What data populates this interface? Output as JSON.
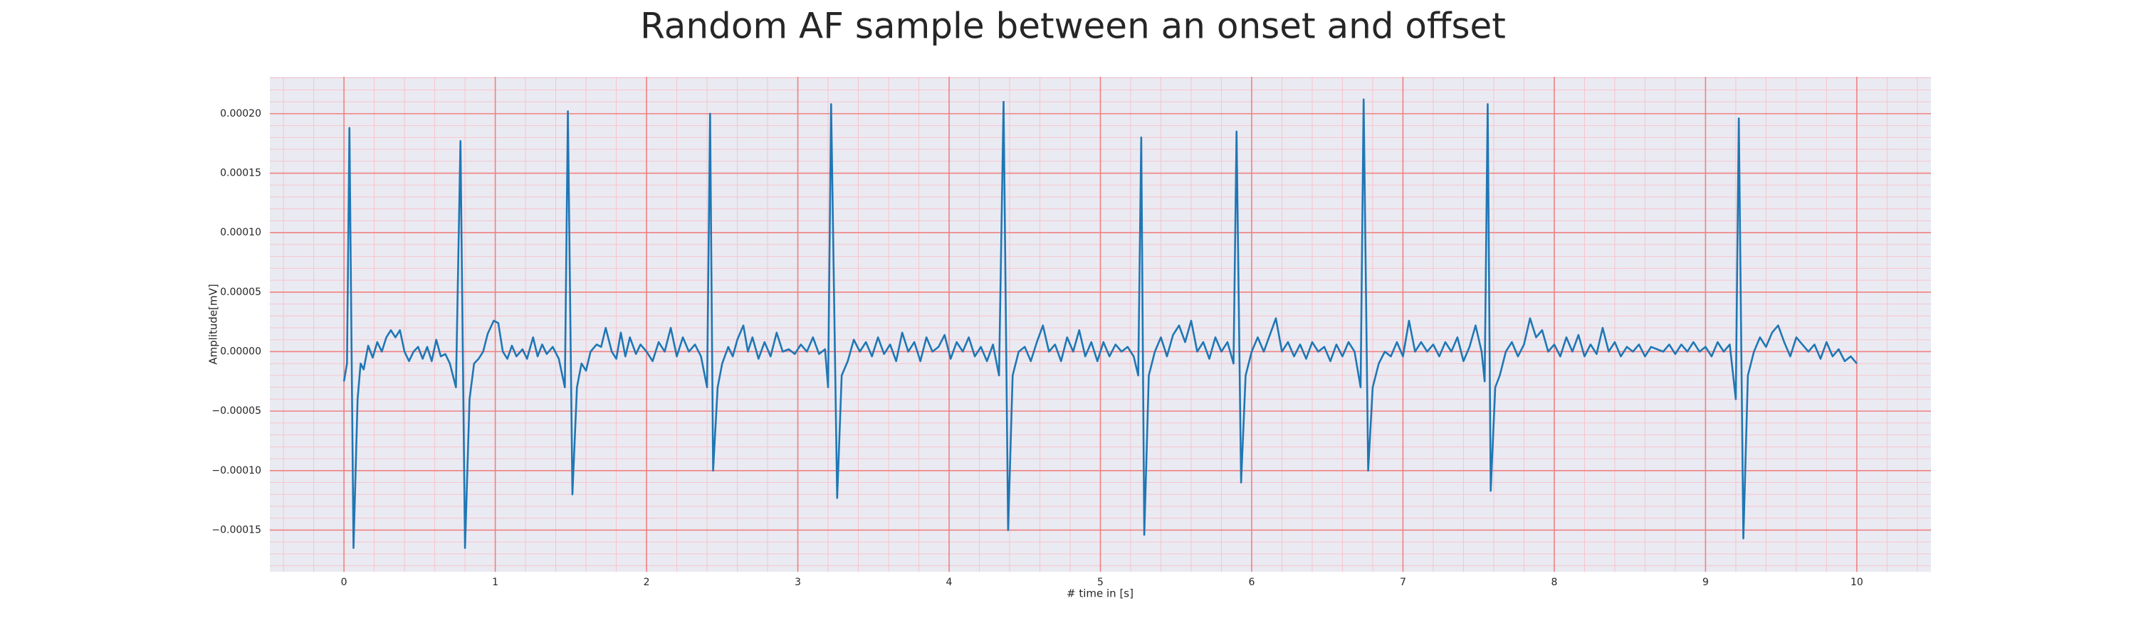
{
  "chart_data": {
    "type": "line",
    "title": "Random AF sample between an onset and offset",
    "x_label": "# time in [s]",
    "y_label": "Amplitude[mV]",
    "grid": true,
    "minor_divisions": 5,
    "major_grid_color": "#f08080",
    "minor_grid_color": "#f7c4cc",
    "background": "#eaeaf2",
    "xlim": [
      -0.49,
      10.49
    ],
    "ylim": [
      -0.000185,
      0.000231
    ],
    "xticks": [
      0,
      1,
      2,
      3,
      4,
      5,
      6,
      7,
      8,
      9,
      10
    ],
    "yticks": [
      {
        "value": -0.00015,
        "label": "−0.00015"
      },
      {
        "value": -0.0001,
        "label": "−0.00010"
      },
      {
        "value": -5e-05,
        "label": "−0.00005"
      },
      {
        "value": 0,
        "label": "0.00000"
      },
      {
        "value": 5e-05,
        "label": "0.00005"
      },
      {
        "value": 0.0001,
        "label": "0.00010"
      },
      {
        "value": 0.00015,
        "label": "0.00015"
      },
      {
        "value": 0.0002,
        "label": "0.00020"
      }
    ],
    "x": [
      0.0,
      0.02,
      0.036,
      0.063,
      0.09,
      0.11,
      0.13,
      0.16,
      0.19,
      0.22,
      0.25,
      0.28,
      0.31,
      0.34,
      0.37,
      0.4,
      0.43,
      0.46,
      0.49,
      0.52,
      0.55,
      0.58,
      0.61,
      0.64,
      0.67,
      0.7,
      0.74,
      0.77,
      0.8,
      0.83,
      0.86,
      0.89,
      0.92,
      0.95,
      0.99,
      1.02,
      1.05,
      1.08,
      1.11,
      1.14,
      1.18,
      1.21,
      1.25,
      1.28,
      1.31,
      1.34,
      1.38,
      1.42,
      1.46,
      1.48,
      1.51,
      1.54,
      1.57,
      1.6,
      1.63,
      1.67,
      1.7,
      1.73,
      1.77,
      1.8,
      1.83,
      1.86,
      1.89,
      1.93,
      1.96,
      2.0,
      2.04,
      2.08,
      2.12,
      2.16,
      2.2,
      2.24,
      2.28,
      2.32,
      2.36,
      2.4,
      2.42,
      2.44,
      2.47,
      2.5,
      2.54,
      2.57,
      2.6,
      2.64,
      2.67,
      2.7,
      2.74,
      2.78,
      2.82,
      2.86,
      2.9,
      2.94,
      2.98,
      3.02,
      3.06,
      3.1,
      3.14,
      3.18,
      3.2,
      3.22,
      3.26,
      3.29,
      3.33,
      3.37,
      3.41,
      3.45,
      3.49,
      3.53,
      3.57,
      3.61,
      3.65,
      3.69,
      3.73,
      3.77,
      3.81,
      3.85,
      3.89,
      3.93,
      3.97,
      4.01,
      4.05,
      4.09,
      4.13,
      4.17,
      4.21,
      4.25,
      4.29,
      4.33,
      4.36,
      4.39,
      4.42,
      4.46,
      4.5,
      4.54,
      4.58,
      4.62,
      4.66,
      4.7,
      4.74,
      4.78,
      4.82,
      4.86,
      4.9,
      4.94,
      4.98,
      5.02,
      5.06,
      5.1,
      5.14,
      5.18,
      5.22,
      5.25,
      5.27,
      5.29,
      5.32,
      5.36,
      5.4,
      5.44,
      5.48,
      5.52,
      5.56,
      5.6,
      5.64,
      5.68,
      5.72,
      5.76,
      5.8,
      5.84,
      5.88,
      5.9,
      5.93,
      5.96,
      6.0,
      6.04,
      6.08,
      6.12,
      6.16,
      6.2,
      6.24,
      6.28,
      6.32,
      6.36,
      6.4,
      6.44,
      6.48,
      6.52,
      6.56,
      6.6,
      6.64,
      6.68,
      6.72,
      6.74,
      6.77,
      6.8,
      6.84,
      6.88,
      6.92,
      6.96,
      7.0,
      7.04,
      7.08,
      7.12,
      7.16,
      7.2,
      7.24,
      7.28,
      7.32,
      7.36,
      7.4,
      7.44,
      7.48,
      7.52,
      7.54,
      7.56,
      7.58,
      7.61,
      7.64,
      7.68,
      7.72,
      7.76,
      7.8,
      7.84,
      7.88,
      7.92,
      7.96,
      8.0,
      8.04,
      8.08,
      8.12,
      8.16,
      8.2,
      8.24,
      8.28,
      8.32,
      8.36,
      8.4,
      8.44,
      8.48,
      8.52,
      8.56,
      8.6,
      8.64,
      8.68,
      8.72,
      8.76,
      8.8,
      8.84,
      8.88,
      8.92,
      8.96,
      9.0,
      9.04,
      9.08,
      9.12,
      9.16,
      9.2,
      9.22,
      9.25,
      9.28,
      9.32,
      9.36,
      9.4,
      9.44,
      9.48,
      9.52,
      9.56,
      9.6,
      9.64,
      9.68,
      9.72,
      9.76,
      9.8,
      9.84,
      9.88,
      9.92,
      9.96,
      10.0
    ],
    "series": [
      {
        "color": "#1f77b4",
        "values": [
          -2.5e-05,
          -1e-05,
          0.000188,
          -0.000165,
          -4e-05,
          -1e-05,
          -1.5e-05,
          5e-06,
          -5e-06,
          8e-06,
          0.0,
          1.2e-05,
          1.8e-05,
          1.2e-05,
          1.8e-05,
          0.0,
          -8e-06,
          0.0,
          4e-06,
          -6e-06,
          4e-06,
          -8e-06,
          1e-05,
          -4e-06,
          -2e-06,
          -1e-05,
          -3e-05,
          0.000177,
          -0.000165,
          -4e-05,
          -1e-05,
          -6e-06,
          0.0,
          1.5e-05,
          2.6e-05,
          2.4e-05,
          0.0,
          -6e-06,
          5e-06,
          -4e-06,
          2e-06,
          -6e-06,
          1.2e-05,
          -4e-06,
          6e-06,
          -2e-06,
          4e-06,
          -6e-06,
          -3e-05,
          0.000202,
          -0.00012,
          -3e-05,
          -1e-05,
          -1.6e-05,
          0.0,
          6e-06,
          4e-06,
          2e-05,
          0.0,
          -6e-06,
          1.6e-05,
          -4e-06,
          1.2e-05,
          -2e-06,
          6e-06,
          0.0,
          -8e-06,
          8e-06,
          0.0,
          2e-05,
          -4e-06,
          1.2e-05,
          0.0,
          6e-06,
          -4e-06,
          -3e-05,
          0.0002,
          -0.0001,
          -3e-05,
          -1e-05,
          4e-06,
          -4e-06,
          1e-05,
          2.2e-05,
          0.0,
          1.2e-05,
          -6e-06,
          8e-06,
          -4e-06,
          1.6e-05,
          0.0,
          2e-06,
          -2e-06,
          6e-06,
          0.0,
          1.2e-05,
          -2e-06,
          2e-06,
          -3e-05,
          0.000208,
          -0.000123,
          -2e-05,
          -8e-06,
          1e-05,
          0.0,
          8e-06,
          -4e-06,
          1.2e-05,
          -2e-06,
          6e-06,
          -8e-06,
          1.6e-05,
          0.0,
          8e-06,
          -8e-06,
          1.2e-05,
          0.0,
          4e-06,
          1.4e-05,
          -6e-06,
          8e-06,
          0.0,
          1.2e-05,
          -4e-06,
          4e-06,
          -8e-06,
          6e-06,
          -2e-05,
          0.00021,
          -0.00015,
          -2e-05,
          0.0,
          4e-06,
          -8e-06,
          8e-06,
          2.2e-05,
          0.0,
          6e-06,
          -8e-06,
          1.2e-05,
          0.0,
          1.8e-05,
          -4e-06,
          8e-06,
          -8e-06,
          8e-06,
          -4e-06,
          6e-06,
          0.0,
          4e-06,
          -4e-06,
          -2e-05,
          0.00018,
          -0.000154,
          -2e-05,
          0.0,
          1.2e-05,
          -4e-06,
          1.4e-05,
          2.2e-05,
          8e-06,
          2.6e-05,
          0.0,
          8e-06,
          -6e-06,
          1.2e-05,
          0.0,
          8e-06,
          -1e-05,
          0.000185,
          -0.00011,
          -2e-05,
          0.0,
          1.2e-05,
          0.0,
          1.4e-05,
          2.8e-05,
          0.0,
          8e-06,
          -4e-06,
          6e-06,
          -6e-06,
          8e-06,
          0.0,
          4e-06,
          -8e-06,
          6e-06,
          -4e-06,
          8e-06,
          0.0,
          -3e-05,
          0.000212,
          -0.0001,
          -3e-05,
          -1e-05,
          0.0,
          -4e-06,
          8e-06,
          -4e-06,
          2.6e-05,
          0.0,
          8e-06,
          0.0,
          6e-06,
          -4e-06,
          8e-06,
          0.0,
          1.2e-05,
          -8e-06,
          4e-06,
          2.2e-05,
          0.0,
          -2.5e-05,
          0.000208,
          -0.000117,
          -3e-05,
          -2e-05,
          0.0,
          8e-06,
          -4e-06,
          6e-06,
          2.8e-05,
          1.2e-05,
          1.8e-05,
          0.0,
          6e-06,
          -4e-06,
          1.2e-05,
          0.0,
          1.4e-05,
          -4e-06,
          6e-06,
          -2e-06,
          2e-05,
          0.0,
          8e-06,
          -4e-06,
          4e-06,
          0.0,
          6e-06,
          -4e-06,
          4e-06,
          2e-06,
          0.0,
          6e-06,
          -2e-06,
          6e-06,
          0.0,
          8e-06,
          0.0,
          4e-06,
          -4e-06,
          8e-06,
          0.0,
          6e-06,
          -4e-05,
          0.000196,
          -0.000157,
          -2e-05,
          0.0,
          1.2e-05,
          4e-06,
          1.6e-05,
          2.2e-05,
          8e-06,
          -4e-06,
          1.2e-05,
          6e-06,
          0.0,
          6e-06,
          -6e-06,
          8e-06,
          -4e-06,
          2e-06,
          -8e-06,
          -4e-06,
          -1e-05
        ]
      }
    ]
  }
}
